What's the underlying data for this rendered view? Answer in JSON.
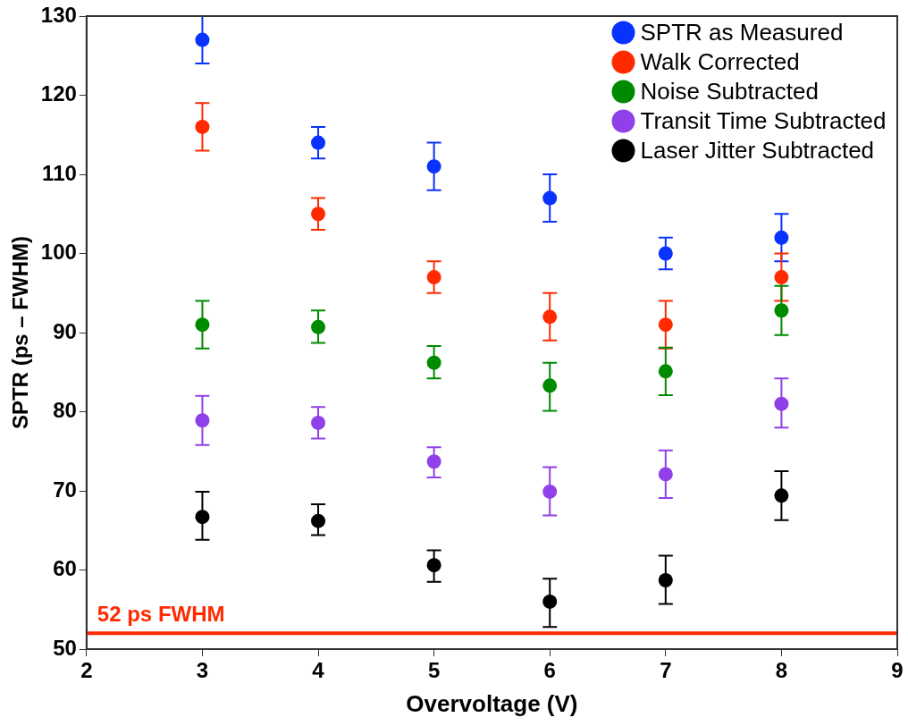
{
  "chart_data": {
    "type": "scatter",
    "xlabel": "Overvoltage (V)",
    "ylabel": "SPTR (ps – FWHM)",
    "x": [
      3,
      4,
      5,
      6,
      7,
      8
    ],
    "series": [
      {
        "name": "SPTR as Measured",
        "color": "#0a32ff",
        "values": [
          127,
          114,
          111,
          107,
          100,
          102
        ],
        "errors": [
          [
            124,
            130
          ],
          [
            112,
            116
          ],
          [
            108,
            114
          ],
          [
            104,
            110
          ],
          [
            98,
            102
          ],
          [
            99,
            105
          ]
        ]
      },
      {
        "name": "Walk Corrected",
        "color": "#ff2a00",
        "values": [
          116,
          105,
          97,
          92,
          91,
          97
        ],
        "errors": [
          [
            113,
            119
          ],
          [
            103,
            107
          ],
          [
            95,
            99
          ],
          [
            89,
            95
          ],
          [
            88,
            94
          ],
          [
            94,
            100
          ]
        ]
      },
      {
        "name": "Noise Subtracted",
        "color": "#008a00",
        "values": [
          91,
          90.7,
          86.2,
          83.3,
          85.1,
          92.8
        ],
        "errors": [
          [
            88,
            94
          ],
          [
            88.7,
            92.8
          ],
          [
            84.2,
            88.3
          ],
          [
            80.1,
            86.2
          ],
          [
            82.1,
            88.1
          ],
          [
            89.7,
            95.9
          ]
        ]
      },
      {
        "name": "Transit Time Subtracted",
        "color": "#9040e8",
        "values": [
          78.9,
          78.6,
          73.7,
          69.9,
          72.1,
          81
        ],
        "errors": [
          [
            75.8,
            82
          ],
          [
            76.6,
            80.6
          ],
          [
            71.7,
            75.5
          ],
          [
            66.9,
            73
          ],
          [
            69.1,
            75.1
          ],
          [
            78,
            84.2
          ]
        ]
      },
      {
        "name": "Laser Jitter Subtracted",
        "color": "#000000",
        "values": [
          66.7,
          66.2,
          60.6,
          56,
          58.7,
          69.4
        ],
        "errors": [
          [
            63.8,
            69.9
          ],
          [
            64.4,
            68.3
          ],
          [
            58.5,
            62.5
          ],
          [
            52.8,
            58.9
          ],
          [
            55.7,
            61.8
          ],
          [
            66.3,
            72.5
          ]
        ]
      }
    ],
    "xlim": [
      2,
      9
    ],
    "xticks": [
      2,
      3,
      4,
      5,
      6,
      7,
      8,
      9
    ],
    "ylim": [
      50,
      130
    ],
    "yticks": [
      50,
      60,
      70,
      80,
      90,
      100,
      110,
      120,
      130
    ],
    "ref_lines": [
      {
        "axis": "y",
        "value": 52,
        "label": "52 ps FWHM",
        "color": "#ff2a00",
        "line_style": "solid"
      }
    ],
    "legend": "top right",
    "grid": false,
    "marker": "circle"
  }
}
